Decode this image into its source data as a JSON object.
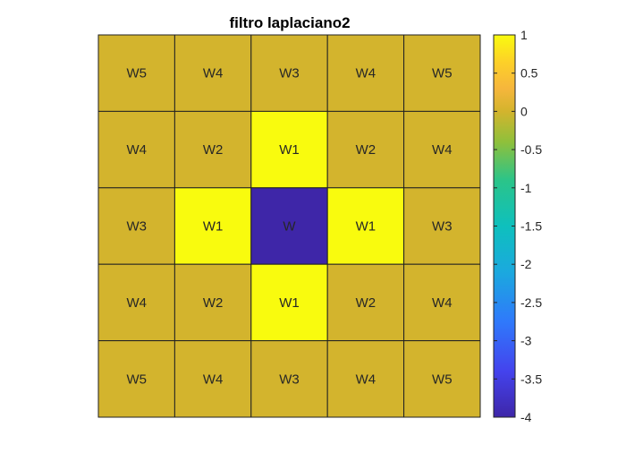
{
  "chart_data": {
    "type": "heatmap",
    "title": "filtro laplaciano2",
    "rows": 5,
    "cols": 5,
    "labels": [
      [
        "W5",
        "W4",
        "W3",
        "W4",
        "W5"
      ],
      [
        "W4",
        "W2",
        "W1",
        "W2",
        "W4"
      ],
      [
        "W3",
        "W1",
        "W",
        "W1",
        "W3"
      ],
      [
        "W4",
        "W2",
        "W1",
        "W2",
        "W4"
      ],
      [
        "W5",
        "W4",
        "W3",
        "W4",
        "W5"
      ]
    ],
    "values": [
      [
        0,
        0,
        0,
        0,
        0
      ],
      [
        0,
        0,
        1,
        0,
        0
      ],
      [
        0,
        1,
        -4,
        1,
        0
      ],
      [
        0,
        0,
        1,
        0,
        0
      ],
      [
        0,
        0,
        0,
        0,
        0
      ]
    ],
    "colorbar": {
      "min": -4,
      "max": 1,
      "ticks": [
        1,
        0.5,
        0,
        -0.5,
        -1,
        -1.5,
        -2,
        -2.5,
        -3,
        -3.5,
        -4
      ],
      "tick_labels": [
        "1",
        "0.5",
        "0",
        "-0.5",
        "-1",
        "-1.5",
        "-2",
        "-2.5",
        "-3",
        "-3.5",
        "-4"
      ],
      "colormap": "parula",
      "placement": "right"
    },
    "grid": true
  }
}
